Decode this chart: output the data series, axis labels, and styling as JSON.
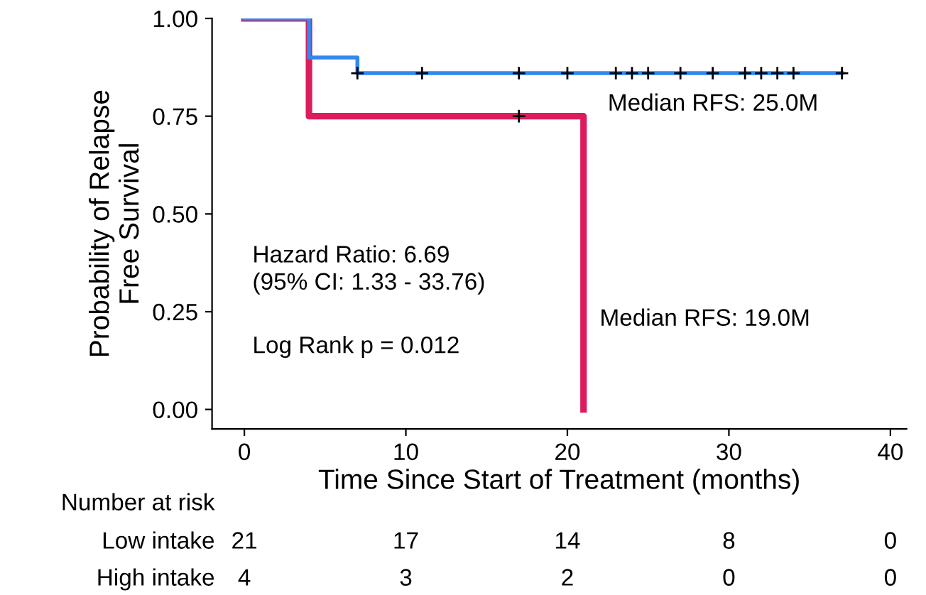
{
  "chart_data": {
    "type": "step",
    "xlabel": "Time Since Start of Treatment (months)",
    "ylabel": "Probability of Relapse\nFree Survival",
    "series": [
      {
        "color": "#3388ee",
        "x": [
          0,
          4,
          7,
          37
        ],
        "values": [
          1.0,
          0.9,
          0.86,
          0.86
        ]
      },
      {
        "color": "#dd1c5c",
        "x": [
          0,
          4,
          21,
          21
        ],
        "values": [
          1.0,
          0.75,
          0.75,
          0.0
        ]
      },
      {
        "type": "scatter",
        "color": "#000000",
        "marker": "cross",
        "x": [
          7,
          11,
          17,
          20,
          23,
          24,
          25,
          27,
          29,
          31,
          32,
          33,
          34,
          37
        ],
        "values": [
          0.86,
          0.86,
          0.86,
          0.86,
          0.86,
          0.86,
          0.86,
          0.86,
          0.86,
          0.86,
          0.86,
          0.86,
          0.86,
          0.86
        ]
      },
      {
        "type": "scatter",
        "color": "#000000",
        "marker": "cross",
        "x": [
          17
        ],
        "values": [
          0.75
        ]
      }
    ],
    "xlim": [
      -2,
      41
    ],
    "xticks": [
      0,
      10,
      20,
      30,
      40
    ],
    "ylim": [
      -0.05,
      1.0
    ],
    "yticks": [
      {
        "value": 0,
        "label": "0.00"
      },
      {
        "value": 0.25,
        "label": "0.25"
      },
      {
        "value": 0.5,
        "label": "0.50"
      },
      {
        "value": 0.75,
        "label": "0.75"
      },
      {
        "value": 1.0,
        "label": "1.00"
      }
    ],
    "grid": false,
    "legend": false,
    "annotations": [
      "Hazard Ratio: 6.69\n(95% CI: 1.33 - 33.76)",
      "Log Rank p = 0.012",
      "Median RFS: 25.0M",
      "Median RFS: 19.0M",
      "Number at risk",
      "Low intake",
      "21",
      "17",
      "14",
      "8",
      "0",
      "High intake",
      "4",
      "3",
      "2",
      "0",
      "0"
    ]
  }
}
